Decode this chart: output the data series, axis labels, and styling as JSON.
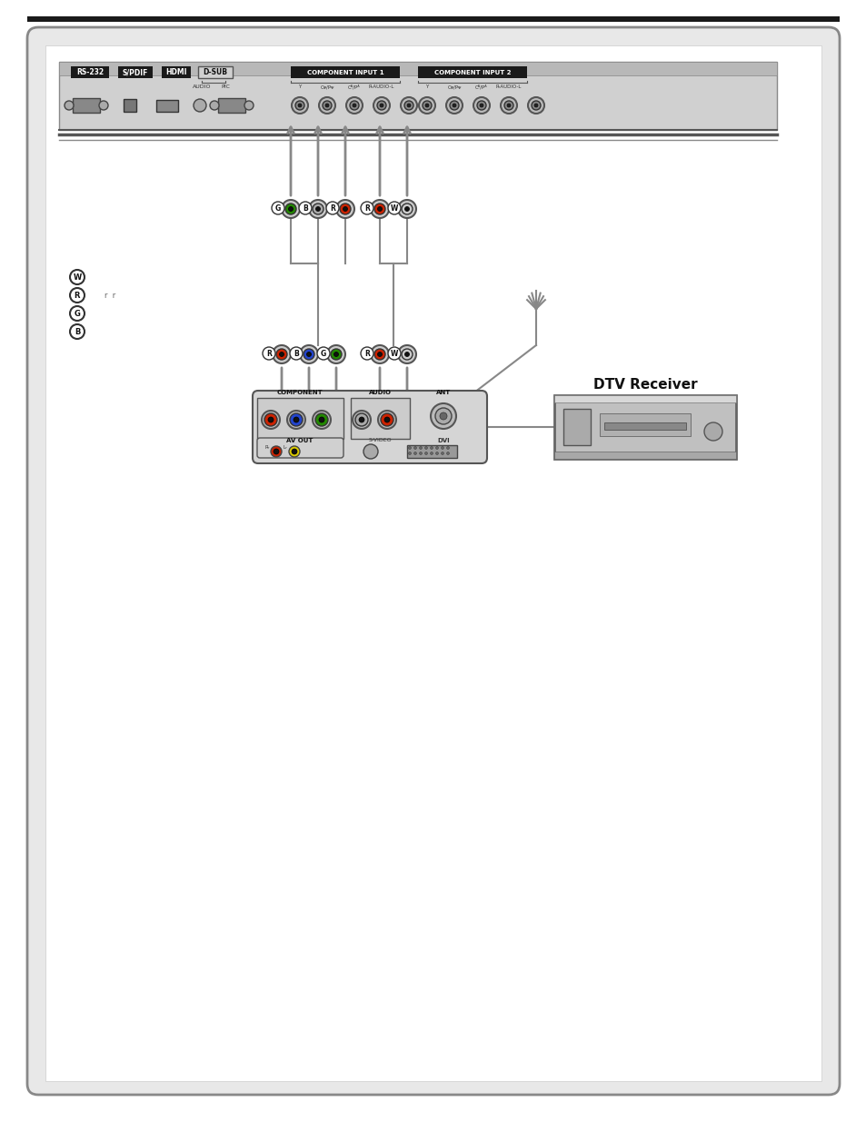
{
  "bg_color": "#f0f0f0",
  "border_color": "#888888",
  "page_bg": "#ffffff",
  "top_bar_color": "#1a1a1a",
  "labels": {
    "rs232": "RS-232",
    "spdif": "S/PDIF",
    "hdmi": "HDMI",
    "dsub": "D-SUB",
    "audio": "AUDIO",
    "pic": "PIC",
    "comp_input1": "COMPONENT INPUT 1",
    "comp_input2": "COMPONENT INPUT 2",
    "dtv_receiver": "DTV Receiver",
    "component": "COMPONENT",
    "audio_label": "AUDIO",
    "ant": "ANT",
    "av_out": "AV OUT",
    "s_video": "S-VIDEO",
    "dvi": "DVI",
    "W": "W",
    "R": "R",
    "G": "G",
    "B": "B"
  },
  "colors": {
    "red": "#cc2200",
    "blue": "#2244cc",
    "green": "#228800",
    "white": "#ffffff",
    "gray": "#999999",
    "dark": "#333333",
    "connector_gray": "#aaaaaa",
    "arrow_gray": "#888888"
  }
}
